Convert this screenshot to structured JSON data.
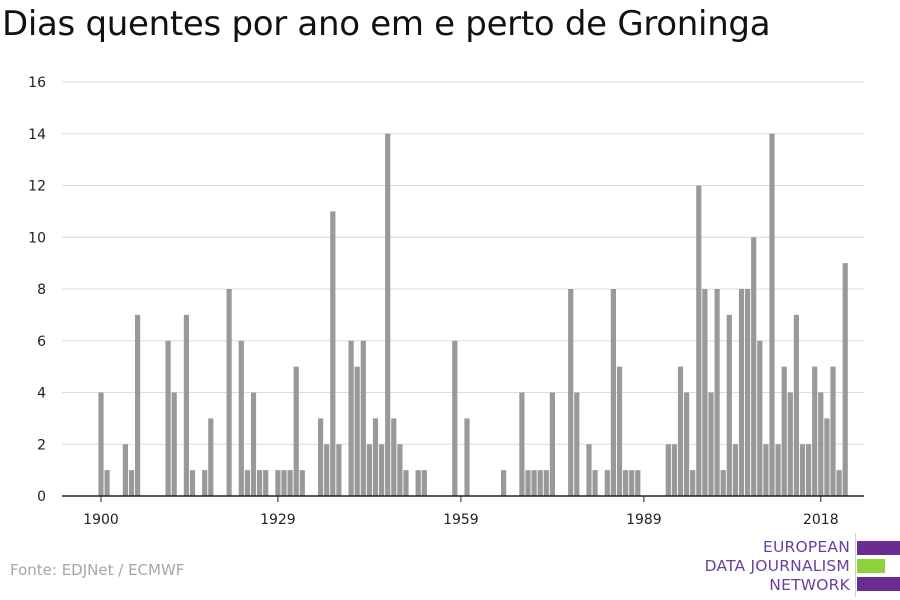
{
  "chart_data": {
    "type": "bar",
    "title": "Dias quentes por ano em e perto de Groninga",
    "xlabel": "",
    "ylabel": "",
    "x_start": 1900,
    "x_end": 2018,
    "xticks": [
      1900,
      1929,
      1959,
      1989,
      2018
    ],
    "yticks": [
      0,
      2,
      4,
      6,
      8,
      10,
      12,
      14,
      16
    ],
    "ylim": [
      0,
      16
    ],
    "grid": true,
    "bar_color": "#999999",
    "values": [
      4,
      1,
      0,
      0,
      2,
      1,
      7,
      0,
      0,
      0,
      0,
      6,
      4,
      0,
      7,
      1,
      0,
      1,
      3,
      0,
      0,
      8,
      0,
      6,
      1,
      4,
      1,
      1,
      0,
      1,
      1,
      1,
      5,
      1,
      0,
      0,
      3,
      2,
      11,
      2,
      0,
      6,
      5,
      6,
      2,
      3,
      2,
      14,
      3,
      2,
      1,
      0,
      1,
      1,
      0,
      0,
      0,
      0,
      6,
      0,
      3,
      0,
      0,
      0,
      0,
      0,
      1,
      0,
      0,
      4,
      1,
      1,
      1,
      1,
      4,
      0,
      0,
      8,
      4,
      0,
      2,
      1,
      0,
      1,
      8,
      5,
      1,
      1,
      1,
      0,
      0,
      0,
      0,
      2,
      2,
      5,
      4,
      1,
      12,
      8,
      4,
      8,
      1,
      7,
      2,
      8,
      8,
      10,
      6,
      2,
      14,
      2,
      5,
      4,
      7,
      2,
      2,
      5,
      4,
      3,
      5,
      1,
      9
    ]
  },
  "source": "Fonte: EDJNet / ECMWF",
  "logo": {
    "line1": "EUROPEAN",
    "line2": "DATA JOURNALISM",
    "line3": "NETWORK",
    "color_purple": "#6b2c91",
    "color_green": "#8fd13a"
  }
}
